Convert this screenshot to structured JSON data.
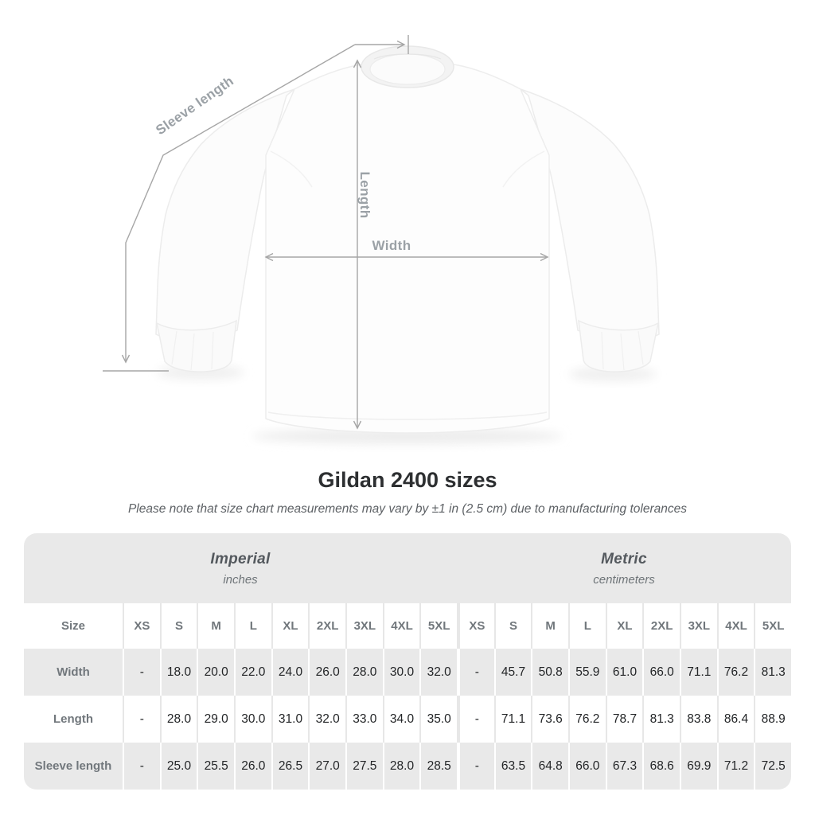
{
  "title": "Gildan 2400 sizes",
  "subtitle": "Please note that size chart measurements may vary by ±1 in (2.5 cm) due to manufacturing tolerances",
  "diagram": {
    "sleeve_length_label": "Sleeve length",
    "length_label": "Length",
    "width_label": "Width"
  },
  "table": {
    "corner_label": "Size",
    "unit_groups": [
      {
        "name": "Imperial",
        "subtitle": "inches"
      },
      {
        "name": "Metric",
        "subtitle": "centimeters"
      }
    ],
    "sizes": [
      "XS",
      "S",
      "M",
      "L",
      "XL",
      "2XL",
      "3XL",
      "4XL",
      "5XL"
    ],
    "rows": [
      {
        "label": "Width",
        "imperial": [
          "-",
          "18.0",
          "20.0",
          "22.0",
          "24.0",
          "26.0",
          "28.0",
          "30.0",
          "32.0"
        ],
        "metric": [
          "-",
          "45.7",
          "50.8",
          "55.9",
          "61.0",
          "66.0",
          "71.1",
          "76.2",
          "81.3"
        ]
      },
      {
        "label": "Length",
        "imperial": [
          "-",
          "28.0",
          "29.0",
          "30.0",
          "31.0",
          "32.0",
          "33.0",
          "34.0",
          "35.0"
        ],
        "metric": [
          "-",
          "71.1",
          "73.6",
          "76.2",
          "78.7",
          "81.3",
          "83.8",
          "86.4",
          "88.9"
        ]
      },
      {
        "label": "Sleeve length",
        "imperial": [
          "-",
          "25.0",
          "25.5",
          "26.0",
          "26.5",
          "27.0",
          "27.5",
          "28.0",
          "28.5"
        ],
        "metric": [
          "-",
          "63.5",
          "64.8",
          "66.0",
          "67.3",
          "68.6",
          "69.9",
          "71.2",
          "72.5"
        ]
      }
    ]
  },
  "chart_data": {
    "type": "table",
    "title": "Gildan 2400 sizes",
    "note": "Please note that size chart measurements may vary by ±1 in (2.5 cm) due to manufacturing tolerances",
    "unit_groups": [
      "Imperial (inches)",
      "Metric (centimeters)"
    ],
    "sizes": [
      "XS",
      "S",
      "M",
      "L",
      "XL",
      "2XL",
      "3XL",
      "4XL",
      "5XL"
    ],
    "measurements": [
      {
        "name": "Width",
        "imperial_inches": [
          null,
          18.0,
          20.0,
          22.0,
          24.0,
          26.0,
          28.0,
          30.0,
          32.0
        ],
        "metric_cm": [
          null,
          45.7,
          50.8,
          55.9,
          61.0,
          66.0,
          71.1,
          76.2,
          81.3
        ]
      },
      {
        "name": "Length",
        "imperial_inches": [
          null,
          28.0,
          29.0,
          30.0,
          31.0,
          32.0,
          33.0,
          34.0,
          35.0
        ],
        "metric_cm": [
          null,
          71.1,
          73.6,
          76.2,
          78.7,
          81.3,
          83.8,
          86.4,
          88.9
        ]
      },
      {
        "name": "Sleeve length",
        "imperial_inches": [
          null,
          25.0,
          25.5,
          26.0,
          26.5,
          27.0,
          27.5,
          28.0,
          28.5
        ],
        "metric_cm": [
          null,
          63.5,
          64.8,
          66.0,
          67.3,
          68.6,
          69.9,
          71.2,
          72.5
        ]
      }
    ]
  },
  "colors": {
    "table_band_gray": "#e9e9e9",
    "value_text": "#232527",
    "header_text": "#71777c",
    "measurement_line": "#a6a6a6",
    "measurement_label": "#9ba1a6"
  }
}
